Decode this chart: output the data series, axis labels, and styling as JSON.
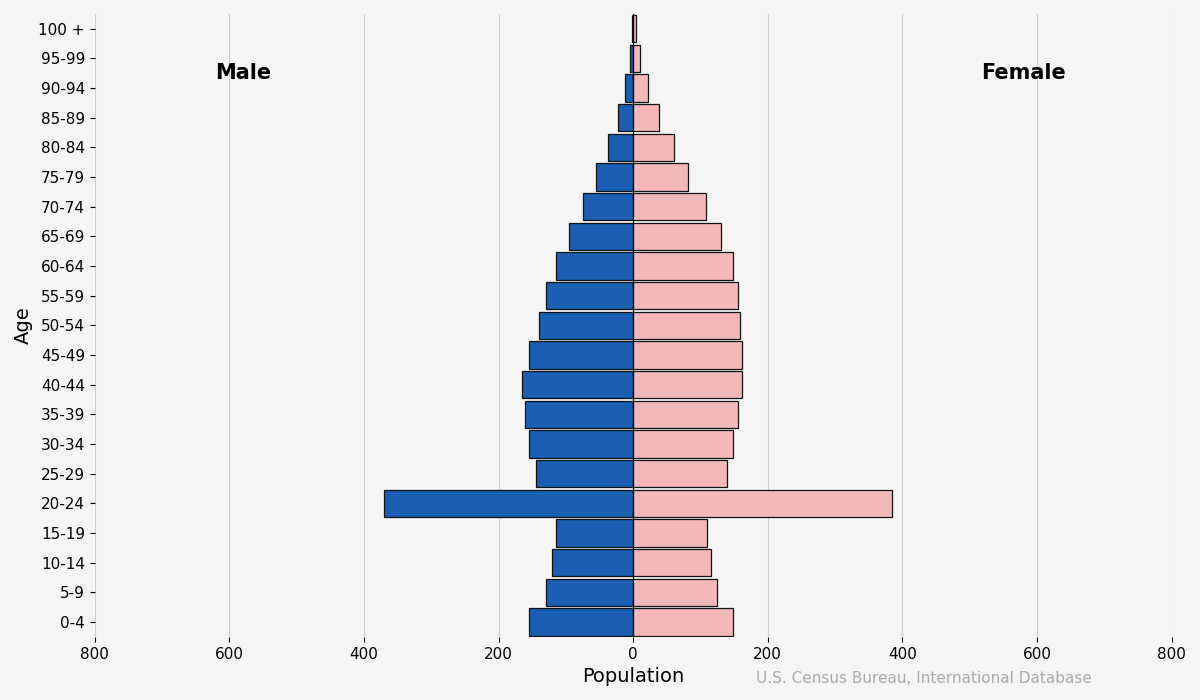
{
  "age_groups": [
    "0-4",
    "5-9",
    "10-14",
    "15-19",
    "20-24",
    "25-29",
    "30-34",
    "35-39",
    "40-44",
    "45-49",
    "50-54",
    "55-59",
    "60-64",
    "65-69",
    "70-74",
    "75-79",
    "80-84",
    "85-89",
    "90-94",
    "95-99",
    "100 +"
  ],
  "male": [
    155,
    130,
    120,
    115,
    370,
    145,
    155,
    160,
    165,
    155,
    140,
    130,
    115,
    95,
    75,
    55,
    38,
    22,
    12,
    5,
    2
  ],
  "female": [
    148,
    125,
    115,
    110,
    385,
    140,
    148,
    155,
    162,
    162,
    158,
    155,
    148,
    130,
    108,
    82,
    60,
    38,
    22,
    10,
    4
  ],
  "male_color": "#1a5fb4",
  "female_color": "#f5b8b8",
  "bar_edge_color": "#111111",
  "bar_linewidth": 0.9,
  "xlabel": "Population",
  "ylabel": "Age",
  "xlim": [
    -800,
    800
  ],
  "xticks": [
    -800,
    -600,
    -400,
    -200,
    0,
    200,
    400,
    600,
    800
  ],
  "xticklabels": [
    "800",
    "600",
    "400",
    "200",
    "0",
    "200",
    "400",
    "600",
    "800"
  ],
  "male_label": "Male",
  "female_label": "Female",
  "annotation": "U.S. Census Bureau, International Database",
  "background_color": "#f5f5f5",
  "grid_color": "#d0d0d0",
  "label_fontsize": 14,
  "tick_fontsize": 11,
  "annotation_fontsize": 11,
  "annotation_color": "#aaaaaa"
}
